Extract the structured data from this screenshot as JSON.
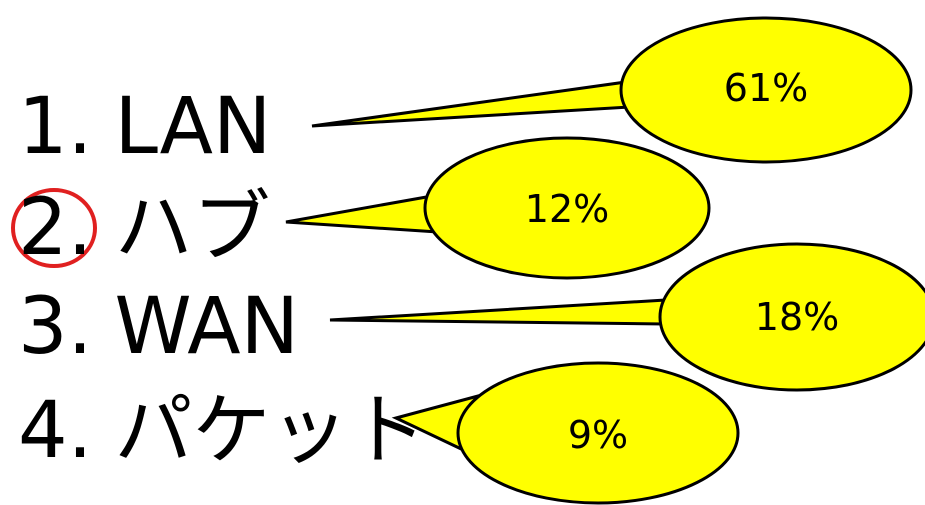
{
  "options": [
    {
      "number": "1",
      "separator": ".",
      "label": "LAN",
      "percent": "61%"
    },
    {
      "number": "2",
      "separator": ".",
      "label": "ハブ",
      "percent": "12%"
    },
    {
      "number": "3",
      "separator": ".",
      "label": "WAN",
      "percent": "18%"
    },
    {
      "number": "4",
      "separator": ".",
      "label": "パケット",
      "percent": "9%"
    }
  ],
  "correct_answer": "2",
  "colors": {
    "bubble_fill": "#ffff00",
    "bubble_stroke": "#000000",
    "marker": "#e02020",
    "text": "#000000"
  }
}
